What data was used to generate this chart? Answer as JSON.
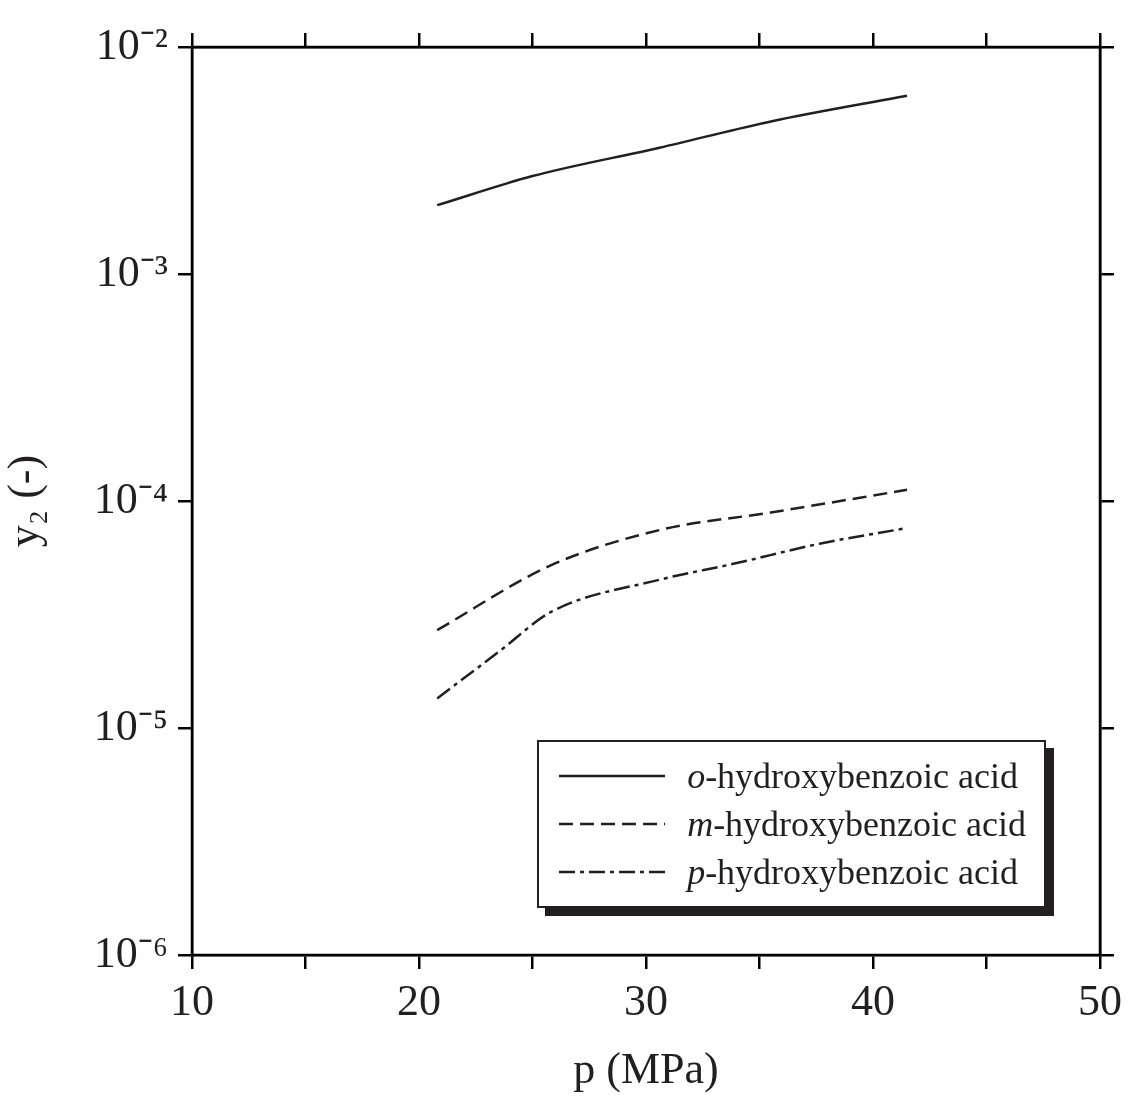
{
  "chart_data": {
    "type": "line",
    "xlabel": "p (MPa)",
    "ylabel": "y₂ (-)",
    "log": "y",
    "xlim": [
      10,
      50
    ],
    "ylim": [
      1e-06,
      0.01
    ],
    "xticks": [
      10,
      {
        "value": 15,
        "label": null
      },
      20,
      {
        "value": 25,
        "label": null
      },
      30,
      {
        "value": 35,
        "label": null
      },
      40,
      {
        "value": 45,
        "label": null
      },
      50
    ],
    "yticks": [
      {
        "value": 1e-06,
        "label": "10⁻⁶"
      },
      {
        "value": 1e-05,
        "label": "10⁻⁵"
      },
      {
        "value": 0.0001,
        "label": "10⁻⁴"
      },
      {
        "value": 0.001,
        "label": "10⁻³"
      },
      {
        "value": 0.01,
        "label": "10⁻²"
      }
    ],
    "legend": "bottom right",
    "marker": "none",
    "series": [
      {
        "name": "o-hydroxybenzoic acid",
        "color": "#231f20",
        "line_style": "solid",
        "x": [
          20.8,
          25,
          30.6,
          35.5,
          41.5
        ],
        "values": [
          0.00201,
          0.0027,
          0.0036,
          0.0047,
          0.0061
        ]
      },
      {
        "name": "m-hydroxybenzoic acid",
        "color": "#231f20",
        "line_style": "dashed",
        "x": [
          20.8,
          25.8,
          30.6,
          35.5,
          41.5
        ],
        "values": [
          2.7e-05,
          5.2e-05,
          7.45e-05,
          8.9e-05,
          0.000112
        ]
      },
      {
        "name": "p-hydroxybenzoic acid",
        "color": "#231f20",
        "line_style": "dashdot",
        "x": [
          20.8,
          23.6,
          25.8,
          30.6,
          33.9,
          37.7,
          41.5
        ],
        "values": [
          1.35e-05,
          2.2e-05,
          3.24e-05,
          4.5e-05,
          5.3e-05,
          6.5e-05,
          7.6e-05
        ]
      }
    ]
  }
}
